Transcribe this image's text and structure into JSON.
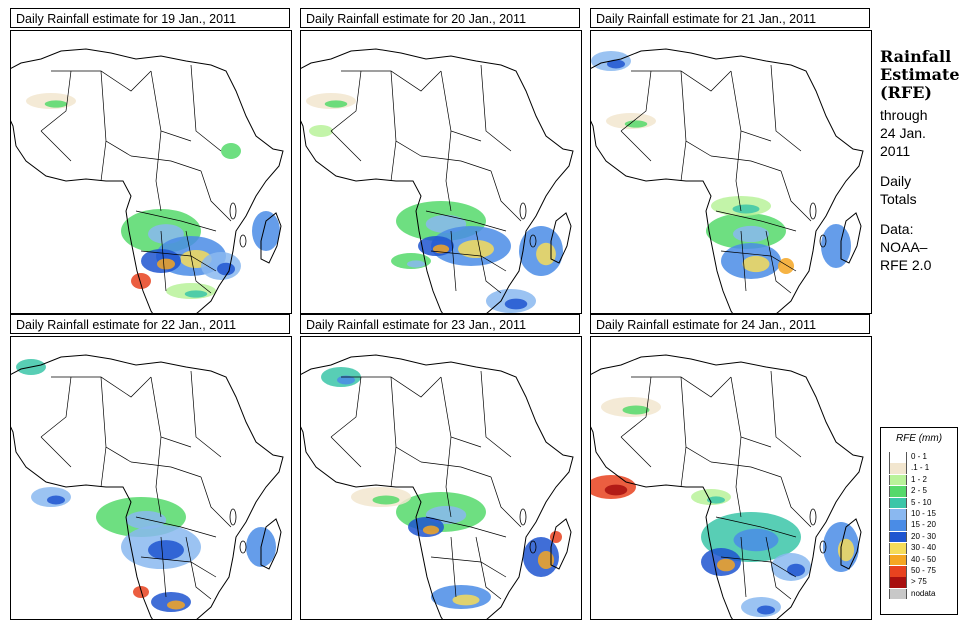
{
  "panels": [
    {
      "title": "Daily Rainfall estimate for  19 Jan., 2011"
    },
    {
      "title": "Daily Rainfall estimate for  20 Jan., 2011"
    },
    {
      "title": "Daily Rainfall estimate for  21 Jan., 2011"
    },
    {
      "title": "Daily Rainfall estimate for  22 Jan., 2011"
    },
    {
      "title": "Daily Rainfall estimate for  23 Jan., 2011"
    },
    {
      "title": "Daily Rainfall estimate for  24 Jan., 2011"
    }
  ],
  "side": {
    "heading1": "Rainfall",
    "heading2": "Estimate",
    "heading3": "(RFE)",
    "line1": "through",
    "line2": "24 Jan.",
    "line3": "2011",
    "line4": "Daily",
    "line5": "Totals",
    "line6": "Data:",
    "line7": "NOAA–",
    "line8": "RFE 2.0"
  },
  "legend": {
    "title": "RFE (mm)",
    "items": [
      {
        "label": "0 - 1",
        "color": "#ffffff"
      },
      {
        "label": ".1 - 1",
        "color": "#f2e6cf"
      },
      {
        "label": "1 - 2",
        "color": "#b9f29a"
      },
      {
        "label": "2 - 5",
        "color": "#55d96b"
      },
      {
        "label": "5 - 10",
        "color": "#3bc6a8"
      },
      {
        "label": "10 - 15",
        "color": "#8ab8f0"
      },
      {
        "label": "15 - 20",
        "color": "#4a8ce6"
      },
      {
        "label": "20 - 30",
        "color": "#1e55d0"
      },
      {
        "label": "30 - 40",
        "color": "#f5dc5a"
      },
      {
        "label": "40 - 50",
        "color": "#f5a623"
      },
      {
        "label": "50 - 75",
        "color": "#e8421f"
      },
      {
        "label": "> 75",
        "color": "#a80f0f"
      },
      {
        "label": "nodata",
        "color": "#c8c8c8"
      }
    ]
  }
}
